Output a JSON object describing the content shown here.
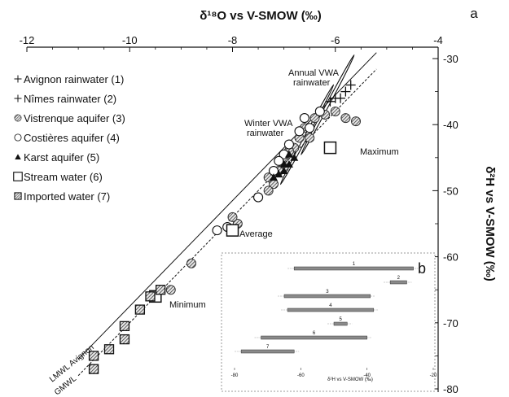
{
  "chart_data": {
    "type": "scatter",
    "panel_a": {
      "panel_label": "a",
      "xlabel": "δ¹⁸O vs V-SMOW (‰)",
      "ylabel": "δ²H vs V-SMOW (‰)",
      "xlim": [
        -12,
        -4
      ],
      "ylim": [
        -80,
        -30
      ],
      "x_ticks": [
        "-12",
        "-10",
        "-8",
        "-6",
        "-4"
      ],
      "x_tick_values": [
        -12,
        -10,
        -8,
        -6,
        -4
      ],
      "y_ticks": [
        "-30",
        "-40",
        "-50",
        "-60",
        "-70",
        "-80"
      ],
      "y_tick_values": [
        -30,
        -40,
        -50,
        -60,
        -70,
        -80
      ],
      "axis_positions": "x-axis top, y-axis right",
      "legend_position": "top-left",
      "legend": [
        {
          "marker": "+",
          "label": "Avignon rainwater (1)"
        },
        {
          "marker": "+",
          "label": "Nîmes rainwater (2)"
        },
        {
          "marker": "⊛",
          "label": "Vistrenque aquifer (3)"
        },
        {
          "marker": "○",
          "label": "Costières aquifer (4)"
        },
        {
          "marker": "▲",
          "label": "Karst aquifer (5)"
        },
        {
          "marker": "□",
          "label": "Stream water (6)"
        },
        {
          "marker": "▩",
          "label": "Imported water (7)"
        }
      ],
      "lines": [
        {
          "name": "LMWL Avignon",
          "slope": 8.0,
          "intercept": 12.5
        },
        {
          "name": "GMWL",
          "slope": 8.0,
          "intercept": 10.0
        }
      ],
      "annotations": [
        "Annual VWA rainwater",
        "Winter VWA rainwater",
        "Maximum",
        "Average",
        "Minimum"
      ],
      "series": [
        {
          "name": "Avignon rainwater (1)",
          "marker": "plus",
          "points": [
            [
              -5.7,
              -34
            ],
            [
              -5.9,
              -36
            ],
            [
              -6.1,
              -36.5
            ]
          ]
        },
        {
          "name": "Nîmes rainwater (2)",
          "marker": "plus",
          "points": [
            [
              -5.8,
              -35
            ],
            [
              -6.0,
              -36
            ]
          ]
        },
        {
          "name": "Vistrenque aquifer (3)",
          "marker": "hatched-circle",
          "points": [
            [
              -6.0,
              -38
            ],
            [
              -5.8,
              -39
            ],
            [
              -6.2,
              -38.5
            ],
            [
              -6.4,
              -39
            ],
            [
              -6.6,
              -40.5
            ],
            [
              -6.5,
              -42
            ],
            [
              -6.7,
              -42
            ],
            [
              -6.8,
              -43.5
            ],
            [
              -6.9,
              -44
            ],
            [
              -7.0,
              -45
            ],
            [
              -7.0,
              -46.5
            ],
            [
              -7.1,
              -47
            ],
            [
              -7.3,
              -48
            ],
            [
              -7.2,
              -49
            ],
            [
              -7.3,
              -50
            ],
            [
              -7.5,
              -51
            ],
            [
              -7.9,
              -55
            ],
            [
              -8.0,
              -54
            ],
            [
              -8.8,
              -61
            ],
            [
              -9.2,
              -65
            ],
            [
              -5.6,
              -39.5
            ]
          ]
        },
        {
          "name": "Costières aquifer (4)",
          "marker": "open-circle",
          "points": [
            [
              -6.3,
              -38
            ],
            [
              -6.6,
              -39
            ],
            [
              -6.5,
              -40.5
            ],
            [
              -6.7,
              -41
            ],
            [
              -6.9,
              -43
            ],
            [
              -7.0,
              -44.5
            ],
            [
              -7.1,
              -45.5
            ],
            [
              -7.2,
              -47
            ],
            [
              -7.5,
              -51
            ],
            [
              -8.1,
              -55.5
            ],
            [
              -8.3,
              -56
            ]
          ]
        },
        {
          "name": "Karst aquifer (5)",
          "marker": "triangle",
          "points": [
            [
              -6.8,
              -45
            ],
            [
              -6.9,
              -46
            ],
            [
              -7.0,
              -47
            ],
            [
              -7.1,
              -47.5
            ],
            [
              -7.2,
              -48
            ],
            [
              -6.9,
              -44.5
            ],
            [
              -7.0,
              -46
            ]
          ]
        },
        {
          "name": "Stream water (6)",
          "marker": "open-square",
          "points": [
            [
              -6.1,
              -43.5
            ],
            [
              -8.0,
              -56
            ],
            [
              -9.5,
              -66
            ]
          ]
        },
        {
          "name": "Imported water (7)",
          "marker": "hatched-square",
          "points": [
            [
              -9.4,
              -65
            ],
            [
              -9.6,
              -66
            ],
            [
              -9.8,
              -68
            ],
            [
              -10.1,
              -70.5
            ],
            [
              -10.1,
              -72.5
            ],
            [
              -10.4,
              -74
            ],
            [
              -10.7,
              -75
            ],
            [
              -10.7,
              -77
            ]
          ]
        }
      ],
      "ellipses": [
        {
          "label": "Annual VWA rainwater",
          "center": [
            -6.15,
            -37.0
          ],
          "semi_axes": [
            1.0,
            0.22
          ],
          "angle_deg": -62
        },
        {
          "label": "Winter VWA rainwater",
          "center": [
            -6.55,
            -41.5
          ],
          "semi_axes": [
            1.0,
            0.22
          ],
          "angle_deg": -62
        }
      ]
    },
    "panel_b": {
      "panel_label": "b",
      "type": "range-bar",
      "xlabel": "δ²H vs V-SMOW (‰)",
      "xlim": [
        -80,
        -20
      ],
      "x_ticks": [
        "-80",
        "-60",
        "-40",
        "-20"
      ],
      "x_tick_values": [
        -80,
        -60,
        -40,
        -20
      ],
      "ranges": [
        {
          "label": "1",
          "min": -62,
          "max": -26
        },
        {
          "label": "2",
          "min": -33,
          "max": -28
        },
        {
          "label": "3",
          "min": -65,
          "max": -39
        },
        {
          "label": "4",
          "min": -64,
          "max": -38
        },
        {
          "label": "5",
          "min": -50,
          "max": -46
        },
        {
          "label": "6",
          "min": -72,
          "max": -40
        },
        {
          "label": "7",
          "min": -78,
          "max": -62
        }
      ]
    }
  }
}
